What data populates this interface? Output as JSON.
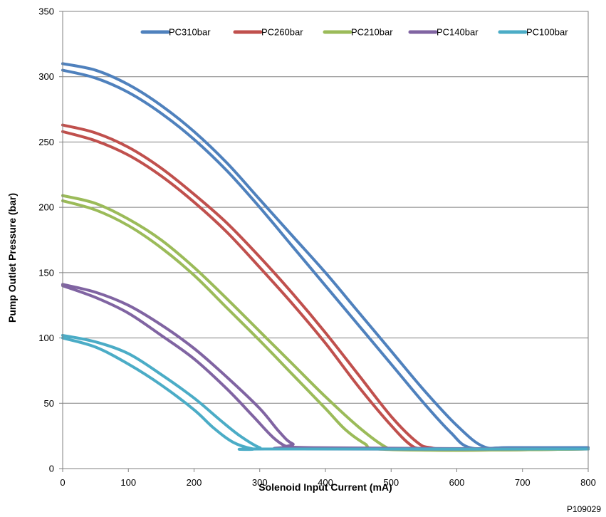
{
  "chart_data": {
    "type": "line",
    "xlabel": "Solenoid Input Current (mA)",
    "ylabel": "Pump Outlet Pressure (bar)",
    "xlim": [
      0,
      800
    ],
    "ylim": [
      0,
      350
    ],
    "xticks": [
      0,
      100,
      200,
      300,
      400,
      500,
      600,
      700,
      800
    ],
    "yticks": [
      0,
      50,
      100,
      150,
      200,
      250,
      300,
      350
    ],
    "grid": "horizontal",
    "legend_position": "top",
    "figure_code": "P109029",
    "series": [
      {
        "name": "PC310bar",
        "color": "#4F81BD",
        "upper": [
          [
            0,
            310
          ],
          [
            50,
            305
          ],
          [
            100,
            294
          ],
          [
            150,
            278
          ],
          [
            200,
            258
          ],
          [
            250,
            234
          ],
          [
            300,
            206
          ],
          [
            350,
            178
          ],
          [
            400,
            150
          ],
          [
            450,
            120
          ],
          [
            500,
            90
          ],
          [
            550,
            60
          ],
          [
            600,
            33
          ],
          [
            640,
            17
          ],
          [
            680,
            16
          ],
          [
            800,
            16
          ]
        ],
        "lower": [
          [
            0,
            305
          ],
          [
            50,
            299
          ],
          [
            100,
            288
          ],
          [
            150,
            272
          ],
          [
            200,
            252
          ],
          [
            250,
            228
          ],
          [
            300,
            200
          ],
          [
            350,
            170
          ],
          [
            400,
            140
          ],
          [
            450,
            110
          ],
          [
            500,
            80
          ],
          [
            550,
            50
          ],
          [
            590,
            28
          ],
          [
            620,
            16
          ],
          [
            680,
            16
          ],
          [
            800,
            16
          ]
        ]
      },
      {
        "name": "PC260bar",
        "color": "#C0504D",
        "upper": [
          [
            0,
            263
          ],
          [
            50,
            257
          ],
          [
            100,
            246
          ],
          [
            150,
            230
          ],
          [
            200,
            210
          ],
          [
            250,
            188
          ],
          [
            300,
            162
          ],
          [
            350,
            134
          ],
          [
            400,
            104
          ],
          [
            450,
            72
          ],
          [
            500,
            40
          ],
          [
            540,
            20
          ],
          [
            560,
            16
          ],
          [
            600,
            15
          ],
          [
            800,
            15
          ]
        ],
        "lower": [
          [
            0,
            258
          ],
          [
            50,
            251
          ],
          [
            100,
            240
          ],
          [
            150,
            224
          ],
          [
            200,
            204
          ],
          [
            250,
            181
          ],
          [
            300,
            154
          ],
          [
            350,
            126
          ],
          [
            400,
            96
          ],
          [
            450,
            63
          ],
          [
            500,
            33
          ],
          [
            530,
            18
          ],
          [
            550,
            15
          ],
          [
            600,
            14
          ],
          [
            800,
            15
          ]
        ]
      },
      {
        "name": "PC210bar",
        "color": "#9BBB59",
        "upper": [
          [
            0,
            209
          ],
          [
            50,
            203
          ],
          [
            100,
            191
          ],
          [
            150,
            175
          ],
          [
            200,
            154
          ],
          [
            250,
            130
          ],
          [
            300,
            105
          ],
          [
            350,
            80
          ],
          [
            400,
            55
          ],
          [
            450,
            32
          ],
          [
            490,
            17
          ],
          [
            510,
            15
          ],
          [
            600,
            14
          ],
          [
            800,
            15
          ]
        ],
        "lower": [
          [
            0,
            205
          ],
          [
            50,
            198
          ],
          [
            100,
            186
          ],
          [
            150,
            169
          ],
          [
            200,
            148
          ],
          [
            250,
            123
          ],
          [
            300,
            98
          ],
          [
            350,
            72
          ],
          [
            400,
            46
          ],
          [
            430,
            30
          ],
          [
            460,
            19
          ],
          [
            480,
            15
          ],
          [
            600,
            14
          ],
          [
            800,
            15
          ]
        ]
      },
      {
        "name": "PC140bar",
        "color": "#8064A2",
        "upper": [
          [
            0,
            141
          ],
          [
            50,
            135
          ],
          [
            100,
            125
          ],
          [
            150,
            110
          ],
          [
            200,
            92
          ],
          [
            250,
            70
          ],
          [
            300,
            46
          ],
          [
            330,
            28
          ],
          [
            350,
            19
          ],
          [
            380,
            16
          ],
          [
            800,
            15
          ]
        ],
        "lower": [
          [
            0,
            140
          ],
          [
            50,
            131
          ],
          [
            100,
            119
          ],
          [
            150,
            102
          ],
          [
            200,
            84
          ],
          [
            250,
            61
          ],
          [
            290,
            40
          ],
          [
            320,
            24
          ],
          [
            340,
            17
          ],
          [
            360,
            15
          ],
          [
            800,
            15
          ]
        ]
      },
      {
        "name": "PC100bar",
        "color": "#4BACC6",
        "upper": [
          [
            0,
            102
          ],
          [
            50,
            97
          ],
          [
            100,
            88
          ],
          [
            150,
            72
          ],
          [
            200,
            54
          ],
          [
            240,
            37
          ],
          [
            270,
            25
          ],
          [
            300,
            16
          ],
          [
            320,
            15
          ],
          [
            800,
            15
          ]
        ],
        "lower": [
          [
            0,
            100
          ],
          [
            50,
            93
          ],
          [
            100,
            80
          ],
          [
            150,
            64
          ],
          [
            200,
            45
          ],
          [
            230,
            31
          ],
          [
            260,
            20
          ],
          [
            290,
            15
          ],
          [
            310,
            15
          ],
          [
            800,
            15
          ]
        ]
      }
    ]
  }
}
